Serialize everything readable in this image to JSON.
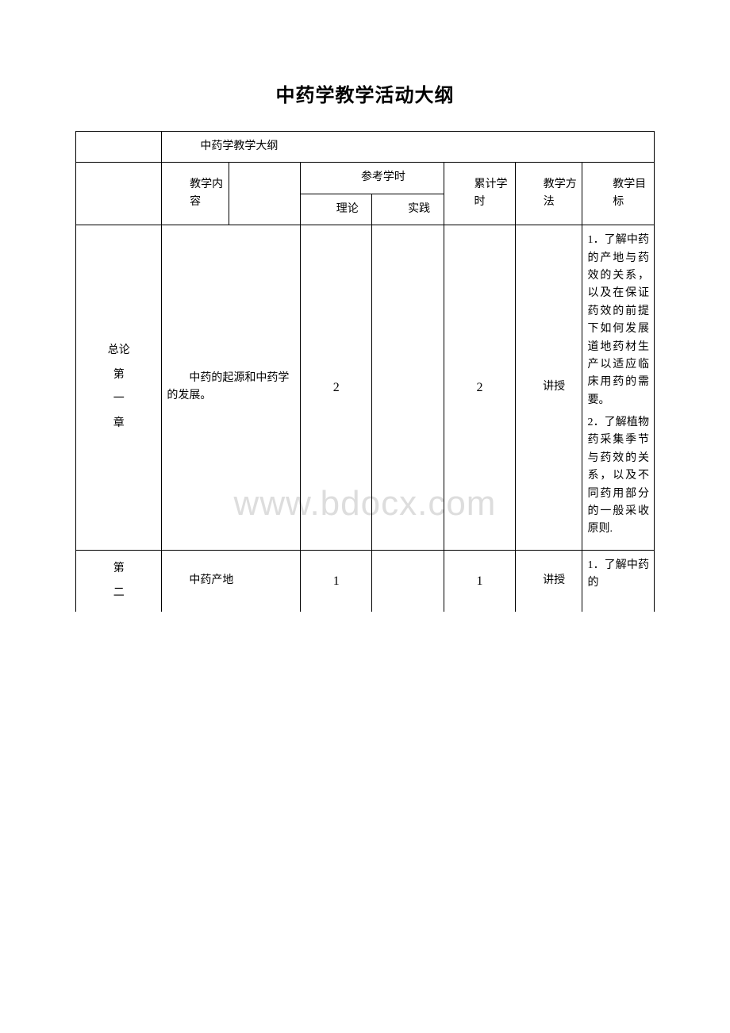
{
  "title": "中药学教学活动大纲",
  "watermark": "www.bdocx.com",
  "header": {
    "subtitle": "中药学教学大纲",
    "content": "教学内容",
    "ref_hours": "参考学时",
    "theory": "理论",
    "practice": "实践",
    "cumulative": "累计学时",
    "method": "教学方法",
    "goal": "教学目标"
  },
  "rows": [
    {
      "chapter": "总论\n第\n一\n章",
      "content": "中药的起源和中药学的发展。",
      "theory": "2",
      "practice": "",
      "cumulative": "2",
      "method": "讲授",
      "goal_1_num": "1",
      "goal_1": "．了解中药的产地与药效的关系，以及在保证药效的前提下如何发展道地药材生产以适应临床用药的需要。",
      "goal_2_num": "2",
      "goal_2": "．了解植物药采集季节与药效的关系，以及不同药用部分的一般采收原则."
    },
    {
      "chapter": "第\n二",
      "content": "中药产地",
      "theory": "1",
      "practice": "",
      "cumulative": "1",
      "method": "讲授",
      "goal_1_num": "1",
      "goal_1": "．了解中药的"
    }
  ]
}
